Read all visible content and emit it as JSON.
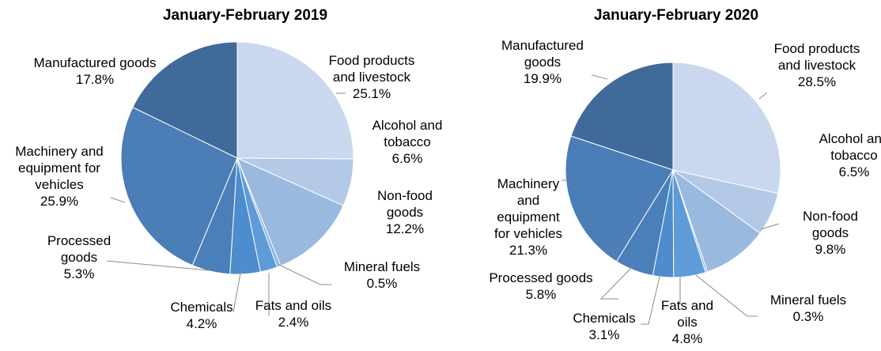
{
  "chart_data": [
    {
      "type": "pie",
      "title": "January-February 2019",
      "slices": [
        {
          "label": "Food products and livestock",
          "label_lines": [
            "Food products",
            "and livestock"
          ],
          "pct": "25.1%",
          "value": 25.1,
          "color": "#c9d8ee"
        },
        {
          "label": "Alcohol and tobacco",
          "label_lines": [
            "Alcohol and",
            "tobacco"
          ],
          "pct": "6.6%",
          "value": 6.6,
          "color": "#b3c9e6"
        },
        {
          "label": "Non-food goods",
          "label_lines": [
            "Non-food",
            "goods"
          ],
          "pct": "12.2%",
          "value": 12.2,
          "color": "#9ab9df"
        },
        {
          "label": "Mineral fuels",
          "label_lines": [
            "Mineral fuels"
          ],
          "pct": "0.5%",
          "value": 0.5,
          "color": "#8fb2dc"
        },
        {
          "label": "Fats and oils",
          "label_lines": [
            "Fats and oils"
          ],
          "pct": "2.4%",
          "value": 2.4,
          "color": "#5e9bd9"
        },
        {
          "label": "Chemicals",
          "label_lines": [
            "Chemicals"
          ],
          "pct": "4.2%",
          "value": 4.2,
          "color": "#4d8ccd"
        },
        {
          "label": "Processed goods",
          "label_lines": [
            "Processed",
            "goods"
          ],
          "pct": "5.3%",
          "value": 5.3,
          "color": "#4a7fb9"
        },
        {
          "label": "Machinery and equipment for vehicles",
          "label_lines": [
            "Machinery and",
            "equipment for",
            "vehicles"
          ],
          "pct": "25.9%",
          "value": 25.9,
          "color": "#4b7db6"
        },
        {
          "label": "Manufactured goods",
          "label_lines": [
            "Manufactured goods"
          ],
          "pct": "17.8%",
          "value": 17.8,
          "color": "#3f6a99"
        }
      ]
    },
    {
      "type": "pie",
      "title": "January-February 2020",
      "slices": [
        {
          "label": "Food products and livestock",
          "label_lines": [
            "Food products",
            "and livestock"
          ],
          "pct": "28.5%",
          "value": 28.5,
          "color": "#c9d8ee"
        },
        {
          "label": "Alcohol and tobacco",
          "label_lines": [
            "Alcohol and",
            "tobacco"
          ],
          "pct": "6.5%",
          "value": 6.5,
          "color": "#b3c9e6"
        },
        {
          "label": "Non-food goods",
          "label_lines": [
            "Non-food",
            "goods"
          ],
          "pct": "9.8%",
          "value": 9.8,
          "color": "#9ab9df"
        },
        {
          "label": "Mineral fuels",
          "label_lines": [
            "Mineral fuels"
          ],
          "pct": "0.3%",
          "value": 0.3,
          "color": "#8fb2dc"
        },
        {
          "label": "Fats and oils",
          "label_lines": [
            "Fats and",
            "oils"
          ],
          "pct": "4.8%",
          "value": 4.8,
          "color": "#5e9bd9"
        },
        {
          "label": "Chemicals",
          "label_lines": [
            "Chemicals"
          ],
          "pct": "3.1%",
          "value": 3.1,
          "color": "#4d8ccd"
        },
        {
          "label": "Processed goods",
          "label_lines": [
            "Processed goods"
          ],
          "pct": "5.8%",
          "value": 5.8,
          "color": "#4a7fb9"
        },
        {
          "label": "Machinery and equipment for vehicles",
          "label_lines": [
            "Machinery",
            "and",
            "equipment",
            "for vehicles"
          ],
          "pct": "21.3%",
          "value": 21.3,
          "color": "#4b7db6"
        },
        {
          "label": "Manufactured goods",
          "label_lines": [
            "Manufactured",
            "goods"
          ],
          "pct": "19.9%",
          "value": 19.9,
          "color": "#3f6a99"
        }
      ]
    }
  ]
}
